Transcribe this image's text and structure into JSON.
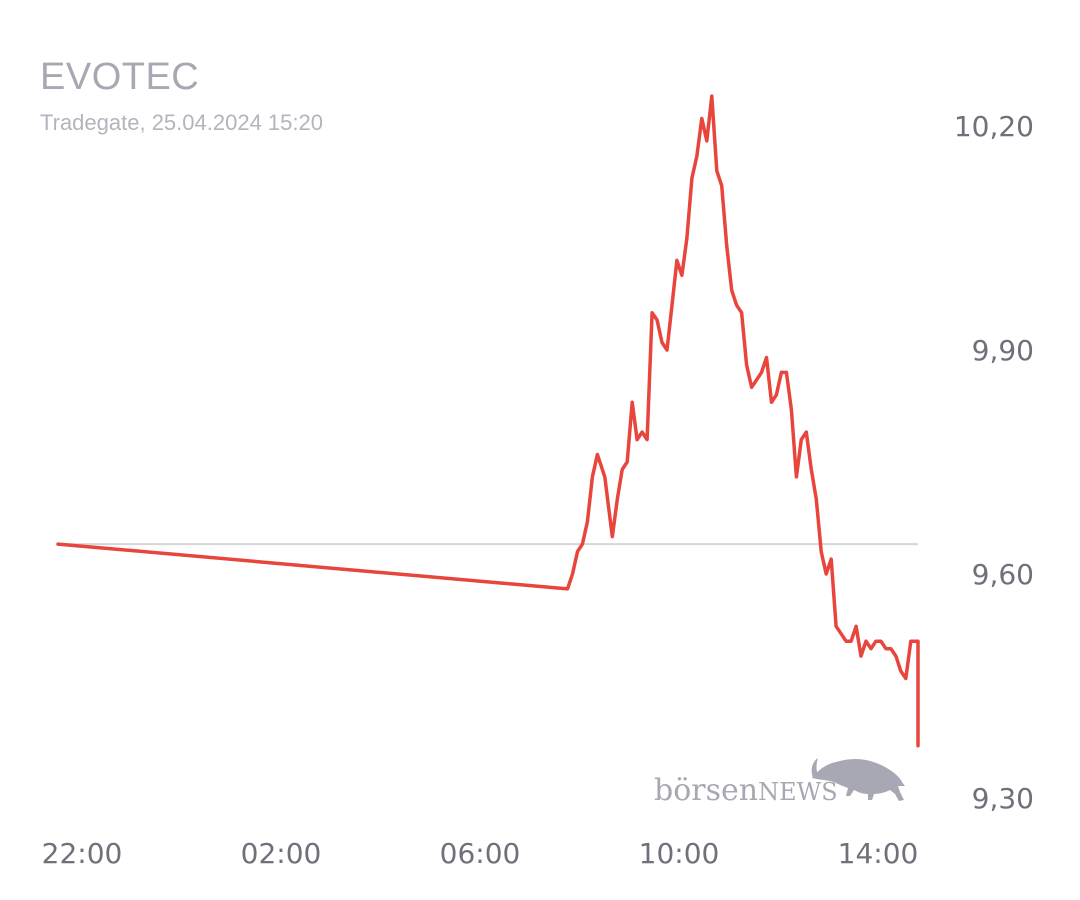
{
  "header": {
    "title": "EVOTEC",
    "subtitle": "Tradegate, 25.04.2024 15:20"
  },
  "watermark": {
    "brand_lower": "börsen",
    "brand_upper": "NEWS"
  },
  "colors": {
    "line": "#e8453c",
    "reference": "#d6d6d6",
    "tick": "#70707c",
    "title": "#a8a8b4",
    "watermark": "#a8a8b4"
  },
  "chart_data": {
    "type": "line",
    "title": "EVOTEC",
    "subtitle": "Tradegate, 25.04.2024 15:20",
    "xlabel": "",
    "ylabel": "",
    "y_axis_position": "right",
    "ylim": [
      9.3,
      10.24
    ],
    "y_ticks": [
      "10,20",
      "9,90",
      "9,60",
      "9,30"
    ],
    "y_tick_values": [
      10.2,
      9.9,
      9.6,
      9.3
    ],
    "x_ticks": [
      "22:00",
      "02:00",
      "06:00",
      "10:00",
      "14:00"
    ],
    "x_tick_hours": [
      -2,
      2,
      6,
      10,
      14
    ],
    "reference_line": 9.64,
    "grid": false,
    "legend": "none",
    "series": [
      {
        "points": [
          [
            -2.0,
            9.64
          ],
          [
            8.0,
            9.58
          ],
          [
            8.1,
            9.6
          ],
          [
            8.2,
            9.63
          ],
          [
            8.3,
            9.64
          ],
          [
            8.4,
            9.67
          ],
          [
            8.5,
            9.73
          ],
          [
            8.6,
            9.76
          ],
          [
            8.75,
            9.73
          ],
          [
            8.9,
            9.65
          ],
          [
            9.0,
            9.7
          ],
          [
            9.1,
            9.74
          ],
          [
            9.2,
            9.75
          ],
          [
            9.3,
            9.83
          ],
          [
            9.4,
            9.78
          ],
          [
            9.5,
            9.79
          ],
          [
            9.6,
            9.78
          ],
          [
            9.7,
            9.95
          ],
          [
            9.8,
            9.94
          ],
          [
            9.9,
            9.91
          ],
          [
            10.0,
            9.9
          ],
          [
            10.1,
            9.96
          ],
          [
            10.2,
            10.02
          ],
          [
            10.3,
            10.0
          ],
          [
            10.4,
            10.05
          ],
          [
            10.5,
            10.13
          ],
          [
            10.6,
            10.16
          ],
          [
            10.7,
            10.21
          ],
          [
            10.8,
            10.18
          ],
          [
            10.9,
            10.24
          ],
          [
            11.0,
            10.14
          ],
          [
            11.1,
            10.12
          ],
          [
            11.2,
            10.04
          ],
          [
            11.3,
            9.98
          ],
          [
            11.4,
            9.96
          ],
          [
            11.5,
            9.95
          ],
          [
            11.6,
            9.88
          ],
          [
            11.7,
            9.85
          ],
          [
            11.8,
            9.86
          ],
          [
            11.9,
            9.87
          ],
          [
            12.0,
            9.89
          ],
          [
            12.1,
            9.83
          ],
          [
            12.2,
            9.84
          ],
          [
            12.3,
            9.87
          ],
          [
            12.4,
            9.87
          ],
          [
            12.5,
            9.82
          ],
          [
            12.6,
            9.73
          ],
          [
            12.7,
            9.78
          ],
          [
            12.8,
            9.79
          ],
          [
            12.9,
            9.74
          ],
          [
            13.0,
            9.7
          ],
          [
            13.1,
            9.63
          ],
          [
            13.2,
            9.6
          ],
          [
            13.3,
            9.62
          ],
          [
            13.4,
            9.53
          ],
          [
            13.5,
            9.52
          ],
          [
            13.6,
            9.51
          ],
          [
            13.7,
            9.51
          ],
          [
            13.8,
            9.53
          ],
          [
            13.9,
            9.49
          ],
          [
            14.0,
            9.51
          ],
          [
            14.1,
            9.5
          ],
          [
            14.2,
            9.51
          ],
          [
            14.3,
            9.51
          ],
          [
            14.4,
            9.5
          ],
          [
            14.5,
            9.5
          ],
          [
            14.6,
            9.49
          ],
          [
            14.7,
            9.47
          ],
          [
            14.8,
            9.46
          ],
          [
            14.9,
            9.51
          ],
          [
            15.0,
            9.51
          ],
          [
            15.1,
            9.51
          ],
          [
            15.2,
            9.47
          ],
          [
            15.3,
            9.47
          ],
          [
            15.4,
            9.47
          ],
          [
            15.5,
            9.49
          ],
          [
            15.6,
            9.48
          ],
          [
            15.7,
            9.41
          ],
          [
            15.8,
            9.44
          ],
          [
            15.9,
            9.45
          ],
          [
            16.0,
            9.4
          ],
          [
            16.1,
            9.37
          ],
          [
            16.2,
            9.37
          ],
          [
            16.3,
            9.38
          ],
          [
            16.4,
            9.37
          ]
        ]
      }
    ]
  }
}
